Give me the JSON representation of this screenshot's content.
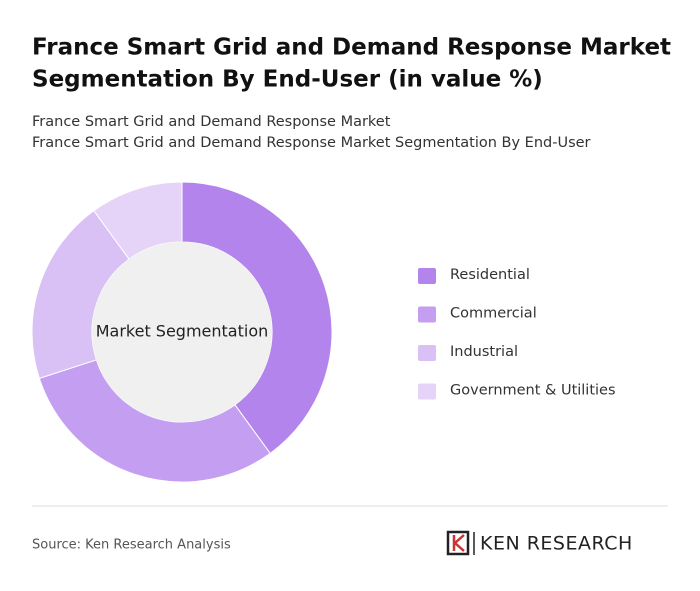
{
  "chart_data": {
    "type": "donut",
    "title": [
      "France Smart Grid and Demand Response Market",
      "Segmentation By End-User (in value %)"
    ],
    "subtitle": [
      "France Smart Grid and Demand Response Market",
      "France Smart Grid and Demand Response Market Segmentation By End-User"
    ],
    "center_label": "Market Segmentation",
    "categories": [
      "Residential",
      "Commercial",
      "Industrial",
      "Government & Utilities"
    ],
    "values": [
      40,
      30,
      20,
      10
    ],
    "colors": [
      "#b284ec",
      "#c49ef0",
      "#d9c0f5",
      "#e5d4f8"
    ],
    "legend": "right"
  },
  "footer": {
    "source": "Source: Ken Research Analysis",
    "logo": "KEN RESEARCH"
  }
}
